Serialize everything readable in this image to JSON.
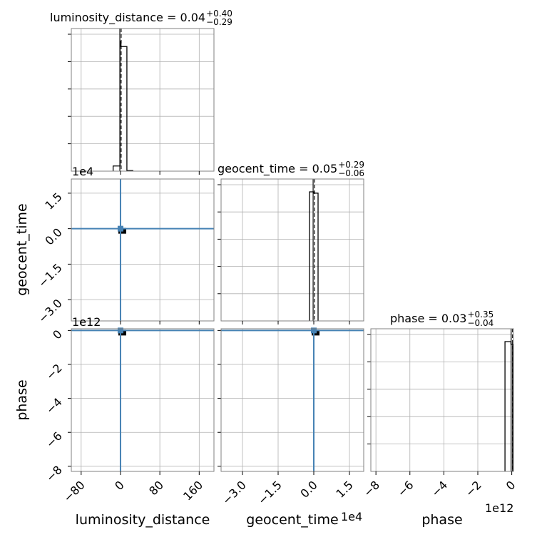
{
  "chart_data": {
    "type": "corner",
    "parameters": [
      "luminosity_distance",
      "geocent_time",
      "phase"
    ],
    "titles": [
      {
        "param": "luminosity_distance",
        "median": "0.04",
        "plus": "+0.40",
        "minus": "−0.29"
      },
      {
        "param": "geocent_time",
        "median": "0.05",
        "plus": "+0.29",
        "minus": "−0.06"
      },
      {
        "param": "phase",
        "median": "0.03",
        "plus": "+0.35",
        "minus": "−0.04"
      }
    ],
    "axes": {
      "luminosity_distance": {
        "range": [
          -100,
          190
        ],
        "ticks": [
          -80,
          0,
          80,
          160
        ],
        "tick_labels": [
          "−80",
          "0",
          "80",
          "160"
        ],
        "offset_text": ""
      },
      "geocent_time": {
        "range": [
          -3.9,
          2.1
        ],
        "ticks": [
          -3.0,
          -1.5,
          0.0,
          1.5
        ],
        "tick_labels": [
          "−3.0",
          "−1.5",
          "0.0",
          "1.5"
        ],
        "offset_text": "1e4"
      },
      "phase": {
        "range": [
          -8.3,
          0.1
        ],
        "ticks": [
          -8,
          -6,
          -4,
          -2,
          0
        ],
        "tick_labels": [
          "−8",
          "−6",
          "−4",
          "−2",
          "0"
        ],
        "offset_text": "1e12"
      }
    },
    "histograms": {
      "luminosity_distance": {
        "bin_edges": [
          -15,
          -1,
          1,
          13,
          25
        ],
        "counts": [
          0.04,
          1.0,
          0.96,
          0.005
        ],
        "peak_rel": 1.0
      },
      "geocent_time": {
        "bin_edges": [
          -0.18,
          0.0,
          0.18
        ],
        "counts": [
          1.0,
          0.99
        ],
        "peak_rel": 1.0
      },
      "phase": {
        "bin_edges": [
          -0.4,
          -0.05,
          0.05
        ],
        "counts": [
          1.0,
          0.98
        ],
        "peak_rel": 1.0
      }
    },
    "truths": {
      "luminosity_distance": 0,
      "geocent_time": 0,
      "phase": 0
    },
    "grid": true,
    "diag_y_ticks": 5
  }
}
